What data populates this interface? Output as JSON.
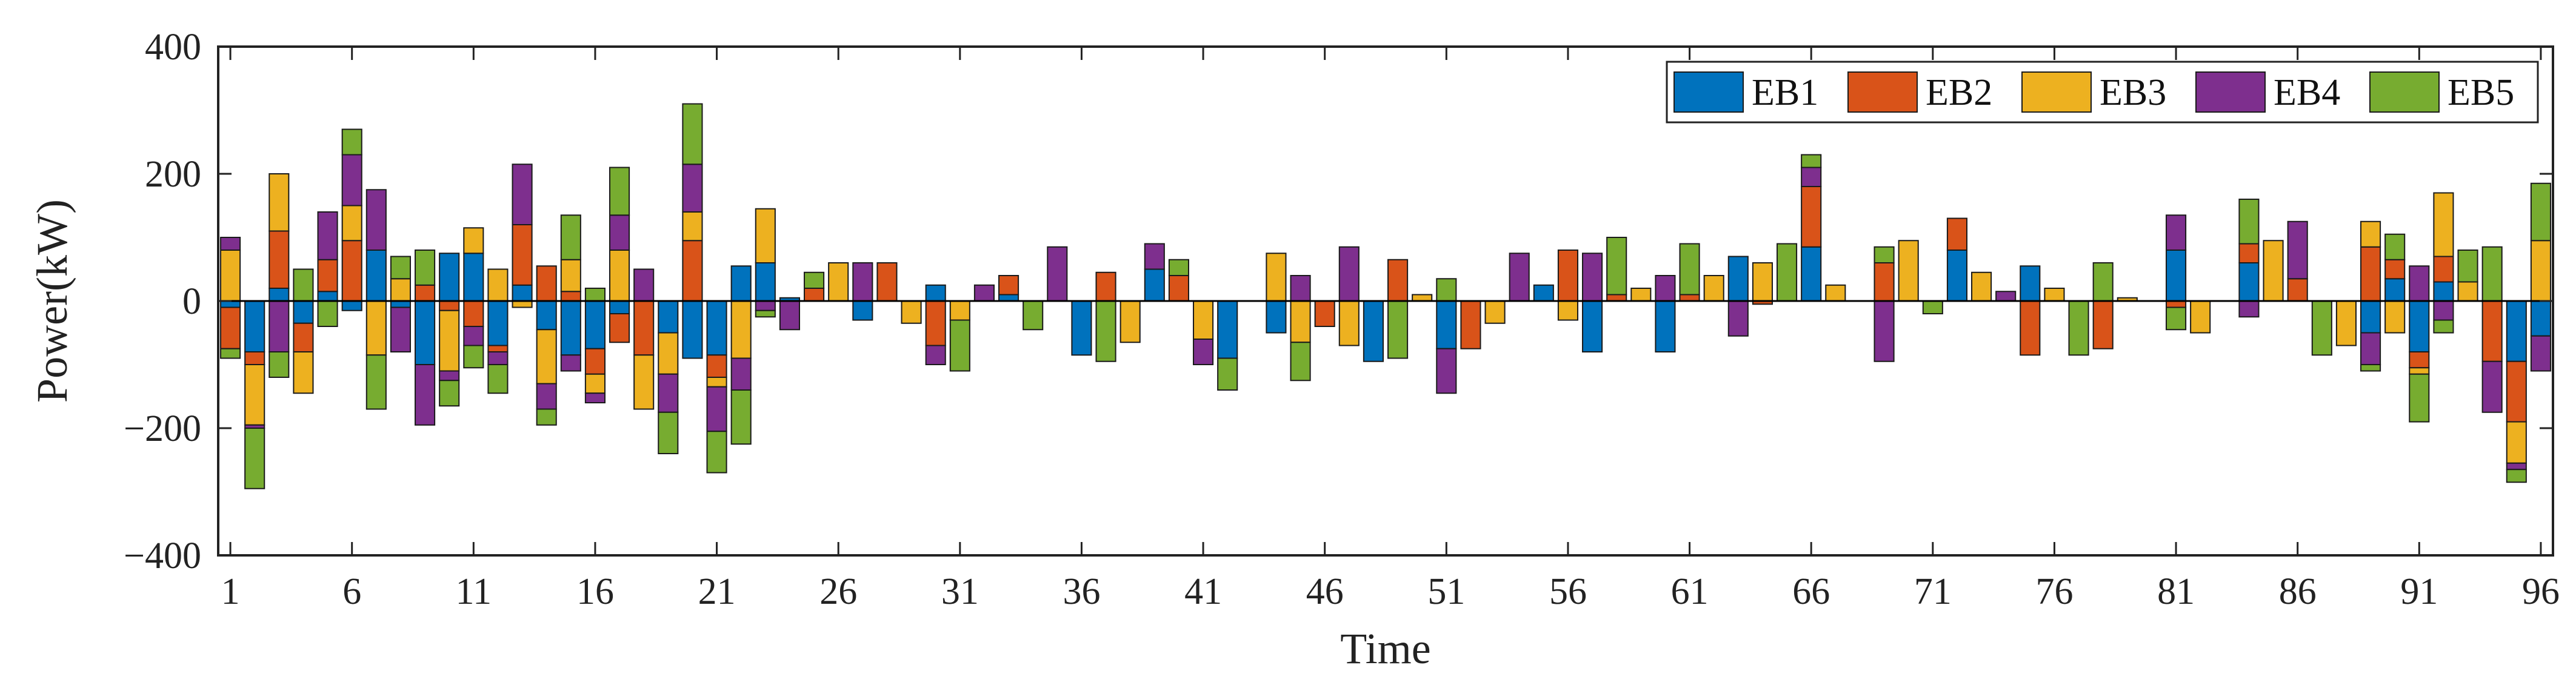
{
  "chart_data": {
    "type": "bar",
    "stacked": true,
    "xlabel": "Time",
    "ylabel": "Power(kW)",
    "ylim": [
      -400,
      400
    ],
    "yticks": [
      -400,
      -200,
      0,
      200,
      400
    ],
    "xlim": [
      0.5,
      96.5
    ],
    "xticks": [
      1,
      6,
      11,
      16,
      21,
      26,
      31,
      36,
      41,
      46,
      51,
      56,
      61,
      66,
      71,
      76,
      81,
      86,
      91,
      96
    ],
    "grid": false,
    "legend": "top-right",
    "categories": [
      1,
      2,
      3,
      4,
      5,
      6,
      7,
      8,
      9,
      10,
      11,
      12,
      13,
      14,
      15,
      16,
      17,
      18,
      19,
      20,
      21,
      22,
      23,
      24,
      25,
      26,
      27,
      28,
      29,
      30,
      31,
      32,
      33,
      34,
      35,
      36,
      37,
      38,
      39,
      40,
      41,
      42,
      43,
      44,
      45,
      46,
      47,
      48,
      49,
      50,
      51,
      52,
      53,
      54,
      55,
      56,
      57,
      58,
      59,
      60,
      61,
      62,
      63,
      64,
      65,
      66,
      67,
      68,
      69,
      70,
      71,
      72,
      73,
      74,
      75,
      76,
      77,
      78,
      79,
      80,
      81,
      82,
      83,
      84,
      85,
      86,
      87,
      88,
      89,
      90,
      91,
      92,
      93,
      94,
      95,
      96
    ],
    "series": [
      {
        "name": "EB1",
        "color": "#0072BD",
        "values": [
          -10,
          -80,
          20,
          -35,
          15,
          -15,
          80,
          -10,
          -100,
          75,
          75,
          -70,
          25,
          -45,
          -85,
          -75,
          -20,
          0,
          -50,
          -90,
          -85,
          55,
          60,
          5,
          0,
          0,
          -30,
          0,
          0,
          25,
          0,
          0,
          10,
          0,
          0,
          -85,
          0,
          0,
          50,
          0,
          0,
          -90,
          0,
          -50,
          0,
          0,
          0,
          -95,
          0,
          0,
          -75,
          0,
          0,
          0,
          25,
          0,
          -80,
          0,
          0,
          -80,
          0,
          0,
          70,
          0,
          0,
          85,
          0,
          0,
          0,
          0,
          0,
          80,
          0,
          0,
          55,
          0,
          0,
          0,
          0,
          0,
          80,
          0,
          0,
          60,
          0,
          0,
          0,
          0,
          -50,
          35,
          -80,
          30,
          0,
          0,
          -95,
          -55
        ]
      },
      {
        "name": "EB2",
        "color": "#D95319",
        "values": [
          -65,
          -20,
          90,
          -45,
          50,
          95,
          0,
          0,
          25,
          -15,
          -40,
          -10,
          95,
          55,
          15,
          -40,
          -45,
          -85,
          0,
          95,
          -35,
          0,
          0,
          0,
          20,
          0,
          0,
          60,
          0,
          -70,
          0,
          0,
          30,
          0,
          0,
          0,
          45,
          0,
          0,
          40,
          0,
          0,
          0,
          0,
          0,
          -40,
          0,
          0,
          65,
          0,
          0,
          -75,
          0,
          0,
          0,
          80,
          0,
          10,
          0,
          0,
          10,
          0,
          0,
          -5,
          0,
          95,
          0,
          0,
          60,
          0,
          0,
          50,
          0,
          0,
          -85,
          0,
          0,
          -75,
          0,
          0,
          -10,
          0,
          0,
          30,
          0,
          35,
          0,
          0,
          85,
          30,
          -25,
          40,
          0,
          -95,
          -95,
          0
        ]
      },
      {
        "name": "EB3",
        "color": "#EDB120",
        "values": [
          80,
          -95,
          90,
          -65,
          0,
          55,
          -85,
          35,
          0,
          -95,
          40,
          50,
          -10,
          -85,
          50,
          -30,
          80,
          -85,
          -65,
          45,
          -15,
          -90,
          85,
          0,
          0,
          60,
          0,
          0,
          -35,
          0,
          -30,
          0,
          0,
          0,
          0,
          0,
          0,
          -65,
          0,
          0,
          -60,
          0,
          0,
          75,
          -65,
          0,
          -70,
          0,
          0,
          10,
          0,
          0,
          -35,
          0,
          0,
          -30,
          0,
          0,
          20,
          0,
          0,
          40,
          0,
          60,
          0,
          0,
          25,
          0,
          0,
          95,
          0,
          0,
          45,
          0,
          0,
          20,
          0,
          0,
          5,
          0,
          0,
          -50,
          0,
          0,
          95,
          0,
          0,
          -70,
          40,
          -50,
          -10,
          100,
          30,
          0,
          -65,
          95
        ]
      },
      {
        "name": "EB4",
        "color": "#7E2F8E",
        "values": [
          20,
          -5,
          -80,
          0,
          75,
          80,
          95,
          -70,
          -95,
          -15,
          -30,
          -20,
          95,
          -40,
          -25,
          -15,
          55,
          50,
          -60,
          75,
          -70,
          -50,
          -15,
          -45,
          0,
          0,
          60,
          0,
          0,
          -30,
          0,
          25,
          0,
          0,
          85,
          0,
          0,
          0,
          40,
          0,
          -40,
          0,
          0,
          0,
          40,
          0,
          85,
          0,
          0,
          0,
          -70,
          0,
          0,
          75,
          0,
          0,
          75,
          0,
          0,
          40,
          0,
          0,
          -55,
          0,
          0,
          30,
          0,
          0,
          -95,
          0,
          0,
          0,
          0,
          15,
          0,
          0,
          0,
          0,
          0,
          0,
          55,
          0,
          0,
          -25,
          0,
          90,
          0,
          0,
          -50,
          0,
          55,
          -30,
          0,
          -80,
          -10,
          -55
        ]
      },
      {
        "name": "EB5",
        "color": "#77AC30",
        "values": [
          -15,
          -95,
          -40,
          50,
          -40,
          40,
          -85,
          35,
          55,
          -40,
          -35,
          -45,
          0,
          -25,
          70,
          20,
          75,
          0,
          -65,
          95,
          -65,
          -85,
          -10,
          0,
          25,
          0,
          0,
          0,
          0,
          0,
          -80,
          0,
          0,
          -45,
          0,
          0,
          -95,
          0,
          0,
          25,
          0,
          -50,
          0,
          0,
          -60,
          0,
          0,
          0,
          -90,
          0,
          35,
          0,
          0,
          0,
          0,
          0,
          0,
          90,
          0,
          0,
          80,
          0,
          0,
          0,
          90,
          20,
          0,
          0,
          25,
          0,
          -20,
          0,
          0,
          0,
          0,
          0,
          -85,
          60,
          0,
          0,
          -35,
          0,
          0,
          70,
          0,
          0,
          -85,
          0,
          -10,
          40,
          -75,
          -20,
          50,
          85,
          -20,
          90
        ]
      }
    ]
  }
}
